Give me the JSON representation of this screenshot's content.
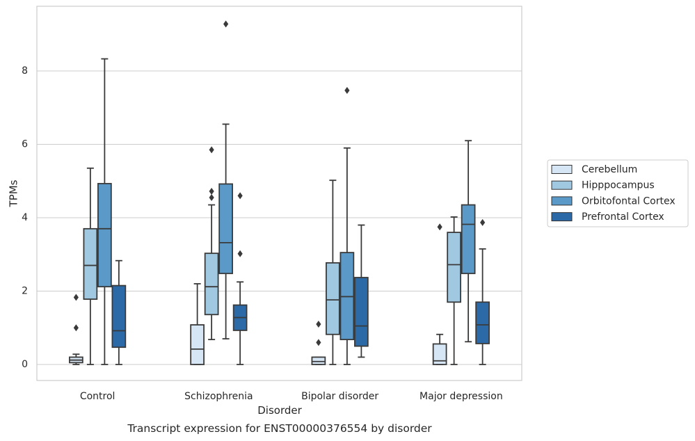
{
  "chart_data": {
    "type": "box",
    "title": "",
    "caption": "Transcript expression for ENST00000376554 by disorder",
    "xlabel": "Disorder",
    "ylabel": "TPMs",
    "ylim": [
      -0.45,
      9.8
    ],
    "yticks": [
      0,
      2,
      4,
      6,
      8
    ],
    "grid": "horizontal",
    "legend_position": "right",
    "categories": [
      "Control",
      "Schizophrenia",
      "Bipolar disorder",
      "Major depression"
    ],
    "series": [
      {
        "name": "Cerebellum",
        "color": "#d7e6f4",
        "boxes": [
          {
            "whisker_low": 0.0,
            "q1": 0.05,
            "median": 0.12,
            "q3": 0.2,
            "whisker_high": 0.28,
            "outliers": [
              1.0,
              1.83
            ]
          },
          {
            "whisker_low": 0.0,
            "q1": 0.0,
            "median": 0.42,
            "q3": 1.08,
            "whisker_high": 2.2,
            "outliers": []
          },
          {
            "whisker_low": 0.0,
            "q1": 0.0,
            "median": 0.08,
            "q3": 0.2,
            "whisker_high": 0.2,
            "outliers": [
              0.6,
              1.1
            ]
          },
          {
            "whisker_low": 0.0,
            "q1": 0.0,
            "median": 0.1,
            "q3": 0.56,
            "whisker_high": 0.82,
            "outliers": [
              3.75
            ]
          }
        ]
      },
      {
        "name": "Hipppocampus",
        "color": "#a0c8e0",
        "boxes": [
          {
            "whisker_low": 0.0,
            "q1": 1.78,
            "median": 2.7,
            "q3": 3.7,
            "whisker_high": 5.35,
            "outliers": []
          },
          {
            "whisker_low": 0.68,
            "q1": 1.36,
            "median": 2.12,
            "q3": 3.03,
            "whisker_high": 4.35,
            "outliers": [
              4.55,
              4.72,
              5.85
            ]
          },
          {
            "whisker_low": 0.0,
            "q1": 0.82,
            "median": 1.76,
            "q3": 2.77,
            "whisker_high": 5.02,
            "outliers": []
          },
          {
            "whisker_low": 0.0,
            "q1": 1.7,
            "median": 2.72,
            "q3": 3.6,
            "whisker_high": 4.02,
            "outliers": []
          }
        ]
      },
      {
        "name": "Orbitofontal Cortex",
        "color": "#5b9ac8",
        "boxes": [
          {
            "whisker_low": 0.0,
            "q1": 2.12,
            "median": 3.7,
            "q3": 4.93,
            "whisker_high": 8.33,
            "outliers": []
          },
          {
            "whisker_low": 0.7,
            "q1": 2.48,
            "median": 3.32,
            "q3": 4.92,
            "whisker_high": 6.55,
            "outliers": [
              9.28
            ]
          },
          {
            "whisker_low": 0.0,
            "q1": 0.68,
            "median": 1.85,
            "q3": 3.05,
            "whisker_high": 5.9,
            "outliers": [
              7.47
            ]
          },
          {
            "whisker_low": 0.62,
            "q1": 2.48,
            "median": 3.82,
            "q3": 4.35,
            "whisker_high": 6.1,
            "outliers": []
          }
        ]
      },
      {
        "name": "Prefrontal Cortex",
        "color": "#2b6aa7",
        "boxes": [
          {
            "whisker_low": 0.0,
            "q1": 0.47,
            "median": 0.92,
            "q3": 2.15,
            "whisker_high": 2.83,
            "outliers": []
          },
          {
            "whisker_low": 0.0,
            "q1": 0.93,
            "median": 1.28,
            "q3": 1.62,
            "whisker_high": 2.25,
            "outliers": [
              3.02,
              4.6
            ]
          },
          {
            "whisker_low": 0.2,
            "q1": 0.5,
            "median": 1.05,
            "q3": 2.37,
            "whisker_high": 3.8,
            "outliers": []
          },
          {
            "whisker_low": 0.0,
            "q1": 0.57,
            "median": 1.08,
            "q3": 1.7,
            "whisker_high": 3.15,
            "outliers": [
              3.87
            ]
          }
        ]
      }
    ]
  }
}
